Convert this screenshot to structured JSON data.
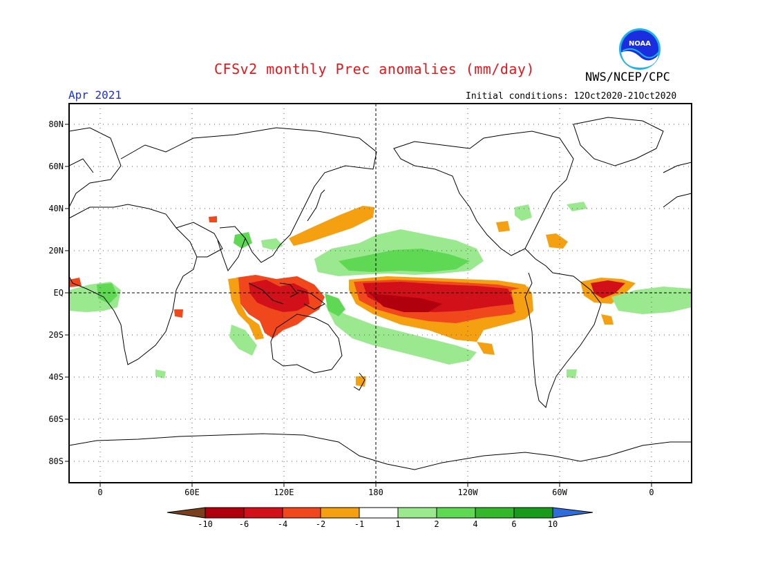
{
  "header": {
    "title": "CFSv2 monthly Prec anomalies (mm/day)",
    "agency": "NWS/NCEP/CPC",
    "month": "Apr 2021",
    "initial_conditions": "Initial conditions: 12Oct2020-21Oct2020",
    "logo_text": "NOAA"
  },
  "map": {
    "lat_labels": [
      "80N",
      "60N",
      "40N",
      "20N",
      "EQ",
      "20S",
      "40S",
      "60S",
      "80S"
    ],
    "lon_labels": [
      "0",
      "60E",
      "120E",
      "180",
      "120W",
      "60W",
      "0"
    ]
  },
  "colorbar": {
    "labels": [
      "-10",
      "-6",
      "-4",
      "-2",
      "-1",
      "1",
      "2",
      "4",
      "6",
      "10"
    ],
    "colors": [
      "#7a3f1c",
      "#b0000d",
      "#d1101a",
      "#f0471c",
      "#f5a010",
      "#ffffff",
      "#9be98f",
      "#5fd853",
      "#34b82b",
      "#1a9a1a",
      "#2f6ddc"
    ]
  },
  "colors": {
    "title": "#e8141a",
    "month": "#1a2ee8",
    "orange": "#f5a010",
    "red_orange": "#f0471c",
    "red": "#d1101a",
    "dark_red": "#b0000d",
    "light_green": "#9be98f",
    "green": "#5fd853"
  }
}
